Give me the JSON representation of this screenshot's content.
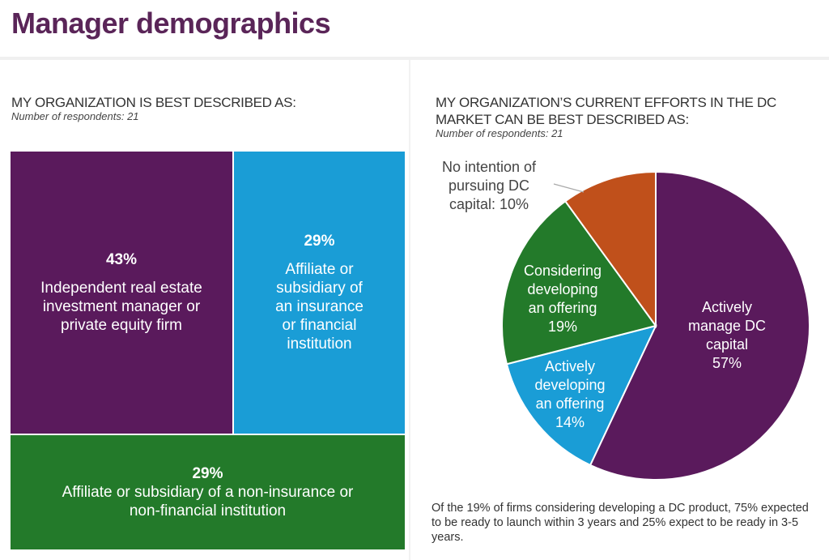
{
  "page": {
    "title": "Manager demographics"
  },
  "left": {
    "question": "MY ORGANIZATION IS BEST DESCRIBED AS:",
    "respondents": "Number of respondents: 21"
  },
  "right": {
    "question_line1": "MY ORGANIZATION’S CURRENT EFFORTS IN THE DC",
    "question_line2": "MARKET CAN BE BEST DESCRIBED AS:",
    "respondents": "Number of respondents: 21",
    "note": "Of the 19% of firms considering developing a DC product, 75% expected to be ready to launch within 3 years and 25% expect to be ready in 3-5 years."
  },
  "chart_data": [
    {
      "type": "treemap",
      "categories": [
        "Independent real estate investment manager or private equity firm",
        "Affiliate or subsidiary of an insurance or financial institution",
        "Affiliate or subsidiary of a non-insurance or non-financial institution"
      ],
      "values": [
        43,
        29,
        29
      ],
      "labels": [
        "43%",
        "29%",
        "29%"
      ],
      "colors": [
        "#5a1a5c",
        "#1a9dd6",
        "#237a2a"
      ]
    },
    {
      "type": "pie",
      "categories": [
        "Actively manage DC capital",
        "Actively developing an offering",
        "Considering developing an offering",
        "No intention of pursuing DC capital"
      ],
      "values": [
        57,
        14,
        19,
        10
      ],
      "labels": [
        [
          "Actively",
          "manage DC",
          "capital",
          "57%"
        ],
        [
          "Actively",
          "developing",
          "an offering",
          "14%"
        ],
        [
          "Considering",
          "developing",
          "an offering",
          "19%"
        ],
        [
          "No intention of",
          "pursuing DC",
          "capital: 10%"
        ]
      ],
      "colors": [
        "#5a1a5c",
        "#1a9dd6",
        "#237a2a",
        "#c0501b"
      ],
      "start": "12 o'clock, clockwise"
    }
  ]
}
